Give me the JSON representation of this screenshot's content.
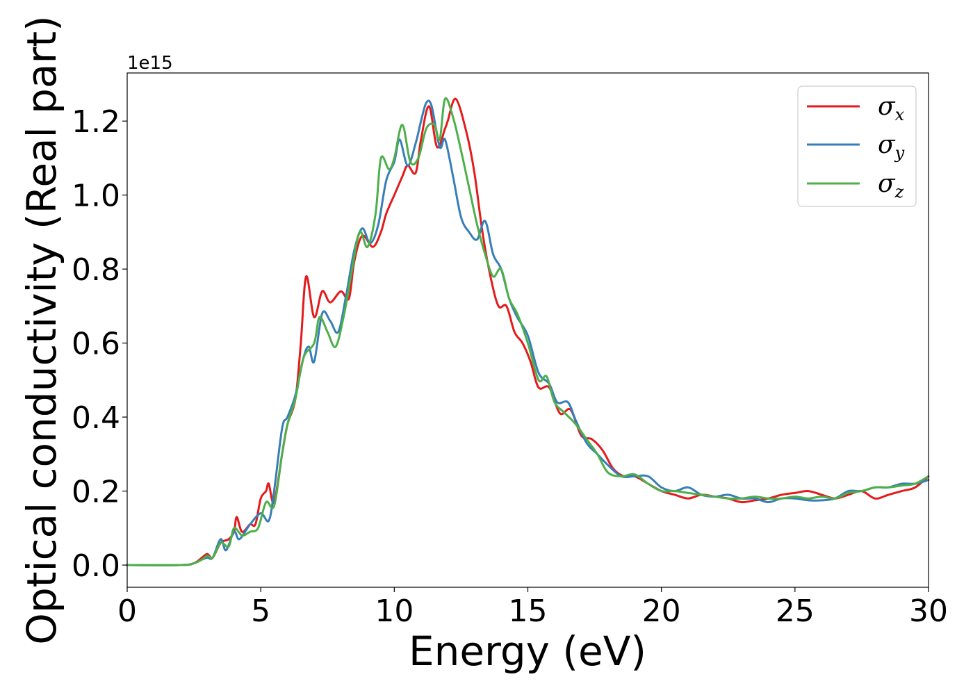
{
  "chart_data": {
    "type": "line",
    "title": "",
    "xlabel": "Energy (eV)",
    "ylabel": "Optical conductivity (Real part)",
    "y_offset_label": "1e15",
    "xlim": [
      0,
      30
    ],
    "ylim": [
      -0.06,
      1.33
    ],
    "x_ticks": [
      0,
      5,
      10,
      15,
      20,
      25,
      30
    ],
    "y_ticks": [
      0.0,
      0.2,
      0.4,
      0.6,
      0.8,
      1.0,
      1.2
    ],
    "x_tick_labels": [
      "0",
      "5",
      "10",
      "15",
      "20",
      "25",
      "30"
    ],
    "y_tick_labels": [
      "0.0",
      "0.2",
      "0.4",
      "0.6",
      "0.8",
      "1.0",
      "1.2"
    ],
    "grid": false,
    "legend_position": "top-right",
    "series": [
      {
        "name": "σ_x",
        "legend_symbol": "σ",
        "legend_sub": "x",
        "color": "#e41a1c",
        "points": [
          [
            0,
            0
          ],
          [
            2,
            0.0
          ],
          [
            2.5,
            0.005
          ],
          [
            2.8,
            0.02
          ],
          [
            3.0,
            0.03
          ],
          [
            3.2,
            0.02
          ],
          [
            3.5,
            0.06
          ],
          [
            3.8,
            0.07
          ],
          [
            4.0,
            0.09
          ],
          [
            4.1,
            0.13
          ],
          [
            4.3,
            0.09
          ],
          [
            4.6,
            0.11
          ],
          [
            4.8,
            0.11
          ],
          [
            5.0,
            0.18
          ],
          [
            5.2,
            0.2
          ],
          [
            5.3,
            0.22
          ],
          [
            5.5,
            0.17
          ],
          [
            5.8,
            0.3
          ],
          [
            6.0,
            0.38
          ],
          [
            6.3,
            0.45
          ],
          [
            6.5,
            0.6
          ],
          [
            6.7,
            0.78
          ],
          [
            7.0,
            0.67
          ],
          [
            7.3,
            0.74
          ],
          [
            7.6,
            0.71
          ],
          [
            8.0,
            0.74
          ],
          [
            8.3,
            0.72
          ],
          [
            8.5,
            0.82
          ],
          [
            8.8,
            0.89
          ],
          [
            9.2,
            0.86
          ],
          [
            9.5,
            0.9
          ],
          [
            9.7,
            0.95
          ],
          [
            10.0,
            1.0
          ],
          [
            10.3,
            1.05
          ],
          [
            10.5,
            1.08
          ],
          [
            10.8,
            1.06
          ],
          [
            11.0,
            1.15
          ],
          [
            11.3,
            1.24
          ],
          [
            11.6,
            1.13
          ],
          [
            11.9,
            1.18
          ],
          [
            12.0,
            1.2
          ],
          [
            12.3,
            1.26
          ],
          [
            12.7,
            1.17
          ],
          [
            13.0,
            1.06
          ],
          [
            13.3,
            0.9
          ],
          [
            13.6,
            0.78
          ],
          [
            13.9,
            0.7
          ],
          [
            14.2,
            0.7
          ],
          [
            14.5,
            0.63
          ],
          [
            14.8,
            0.6
          ],
          [
            15.1,
            0.55
          ],
          [
            15.4,
            0.48
          ],
          [
            15.8,
            0.48
          ],
          [
            16.2,
            0.41
          ],
          [
            16.6,
            0.42
          ],
          [
            17.0,
            0.35
          ],
          [
            17.4,
            0.34
          ],
          [
            17.8,
            0.31
          ],
          [
            18.2,
            0.26
          ],
          [
            18.6,
            0.24
          ],
          [
            19.0,
            0.24
          ],
          [
            19.5,
            0.22
          ],
          [
            20.0,
            0.2
          ],
          [
            20.5,
            0.19
          ],
          [
            21.0,
            0.18
          ],
          [
            21.5,
            0.19
          ],
          [
            22.0,
            0.185
          ],
          [
            22.5,
            0.18
          ],
          [
            23.0,
            0.17
          ],
          [
            23.5,
            0.175
          ],
          [
            24.0,
            0.18
          ],
          [
            24.5,
            0.19
          ],
          [
            25.0,
            0.195
          ],
          [
            25.5,
            0.2
          ],
          [
            26.0,
            0.19
          ],
          [
            26.5,
            0.18
          ],
          [
            27.0,
            0.19
          ],
          [
            27.5,
            0.2
          ],
          [
            28.0,
            0.18
          ],
          [
            28.5,
            0.19
          ],
          [
            29.0,
            0.2
          ],
          [
            29.5,
            0.21
          ],
          [
            30.0,
            0.24
          ]
        ]
      },
      {
        "name": "σ_y",
        "legend_symbol": "σ",
        "legend_sub": "y",
        "color": "#377eb8",
        "points": [
          [
            0,
            0
          ],
          [
            2,
            0.0
          ],
          [
            2.5,
            0.005
          ],
          [
            2.8,
            0.015
          ],
          [
            3.0,
            0.02
          ],
          [
            3.2,
            0.02
          ],
          [
            3.5,
            0.07
          ],
          [
            3.7,
            0.04
          ],
          [
            4.0,
            0.09
          ],
          [
            4.2,
            0.07
          ],
          [
            4.6,
            0.11
          ],
          [
            5.0,
            0.14
          ],
          [
            5.3,
            0.12
          ],
          [
            5.5,
            0.2
          ],
          [
            5.8,
            0.37
          ],
          [
            6.0,
            0.4
          ],
          [
            6.3,
            0.46
          ],
          [
            6.6,
            0.56
          ],
          [
            6.8,
            0.59
          ],
          [
            7.0,
            0.55
          ],
          [
            7.3,
            0.68
          ],
          [
            7.6,
            0.66
          ],
          [
            7.9,
            0.63
          ],
          [
            8.2,
            0.73
          ],
          [
            8.5,
            0.85
          ],
          [
            8.8,
            0.91
          ],
          [
            9.1,
            0.87
          ],
          [
            9.4,
            0.92
          ],
          [
            9.7,
            1.04
          ],
          [
            10.0,
            1.09
          ],
          [
            10.2,
            1.15
          ],
          [
            10.5,
            1.08
          ],
          [
            10.8,
            1.14
          ],
          [
            11.0,
            1.2
          ],
          [
            11.2,
            1.25
          ],
          [
            11.4,
            1.24
          ],
          [
            11.7,
            1.13
          ],
          [
            11.9,
            1.15
          ],
          [
            12.2,
            1.05
          ],
          [
            12.5,
            0.94
          ],
          [
            12.8,
            0.9
          ],
          [
            13.1,
            0.88
          ],
          [
            13.4,
            0.93
          ],
          [
            13.7,
            0.84
          ],
          [
            14.0,
            0.8
          ],
          [
            14.3,
            0.72
          ],
          [
            14.6,
            0.67
          ],
          [
            15.0,
            0.62
          ],
          [
            15.4,
            0.52
          ],
          [
            15.8,
            0.49
          ],
          [
            16.1,
            0.44
          ],
          [
            16.5,
            0.44
          ],
          [
            16.8,
            0.39
          ],
          [
            17.2,
            0.33
          ],
          [
            17.6,
            0.3
          ],
          [
            18.0,
            0.27
          ],
          [
            18.5,
            0.24
          ],
          [
            19.0,
            0.24
          ],
          [
            19.5,
            0.24
          ],
          [
            20.0,
            0.21
          ],
          [
            20.5,
            0.2
          ],
          [
            21.0,
            0.21
          ],
          [
            21.5,
            0.19
          ],
          [
            22.0,
            0.185
          ],
          [
            22.5,
            0.19
          ],
          [
            23.0,
            0.18
          ],
          [
            23.5,
            0.18
          ],
          [
            24.0,
            0.17
          ],
          [
            24.5,
            0.18
          ],
          [
            25.0,
            0.18
          ],
          [
            25.5,
            0.175
          ],
          [
            26.0,
            0.175
          ],
          [
            26.5,
            0.18
          ],
          [
            27.0,
            0.2
          ],
          [
            27.5,
            0.2
          ],
          [
            28.0,
            0.21
          ],
          [
            28.5,
            0.21
          ],
          [
            29.0,
            0.22
          ],
          [
            29.5,
            0.22
          ],
          [
            30.0,
            0.23
          ]
        ]
      },
      {
        "name": "σ_z",
        "legend_symbol": "σ",
        "legend_sub": "z",
        "color": "#4daf4a",
        "points": [
          [
            0,
            0
          ],
          [
            2,
            0.0
          ],
          [
            2.5,
            0.005
          ],
          [
            2.8,
            0.015
          ],
          [
            3.0,
            0.025
          ],
          [
            3.2,
            0.02
          ],
          [
            3.5,
            0.06
          ],
          [
            3.8,
            0.05
          ],
          [
            4.0,
            0.1
          ],
          [
            4.3,
            0.08
          ],
          [
            4.6,
            0.09
          ],
          [
            4.9,
            0.1
          ],
          [
            5.2,
            0.17
          ],
          [
            5.5,
            0.16
          ],
          [
            5.8,
            0.3
          ],
          [
            6.0,
            0.38
          ],
          [
            6.3,
            0.45
          ],
          [
            6.6,
            0.56
          ],
          [
            7.0,
            0.6
          ],
          [
            7.2,
            0.67
          ],
          [
            7.5,
            0.63
          ],
          [
            7.8,
            0.59
          ],
          [
            8.1,
            0.67
          ],
          [
            8.4,
            0.79
          ],
          [
            8.7,
            0.9
          ],
          [
            9.0,
            0.86
          ],
          [
            9.3,
            0.95
          ],
          [
            9.5,
            1.1
          ],
          [
            9.8,
            1.07
          ],
          [
            10.0,
            1.1
          ],
          [
            10.3,
            1.19
          ],
          [
            10.6,
            1.09
          ],
          [
            10.9,
            1.1
          ],
          [
            11.2,
            1.18
          ],
          [
            11.5,
            1.19
          ],
          [
            11.7,
            1.15
          ],
          [
            11.9,
            1.26
          ],
          [
            12.2,
            1.21
          ],
          [
            12.5,
            1.12
          ],
          [
            12.8,
            1.02
          ],
          [
            13.1,
            0.92
          ],
          [
            13.4,
            0.84
          ],
          [
            13.7,
            0.78
          ],
          [
            14.0,
            0.8
          ],
          [
            14.3,
            0.72
          ],
          [
            14.6,
            0.68
          ],
          [
            15.0,
            0.6
          ],
          [
            15.4,
            0.5
          ],
          [
            15.7,
            0.51
          ],
          [
            16.0,
            0.44
          ],
          [
            16.4,
            0.41
          ],
          [
            16.8,
            0.38
          ],
          [
            17.2,
            0.34
          ],
          [
            17.6,
            0.3
          ],
          [
            18.0,
            0.25
          ],
          [
            18.5,
            0.24
          ],
          [
            19.0,
            0.245
          ],
          [
            19.5,
            0.22
          ],
          [
            20.0,
            0.2
          ],
          [
            20.5,
            0.2
          ],
          [
            21.0,
            0.195
          ],
          [
            21.5,
            0.19
          ],
          [
            22.0,
            0.185
          ],
          [
            22.5,
            0.18
          ],
          [
            23.0,
            0.18
          ],
          [
            23.5,
            0.185
          ],
          [
            24.0,
            0.18
          ],
          [
            24.5,
            0.18
          ],
          [
            25.0,
            0.185
          ],
          [
            25.5,
            0.18
          ],
          [
            26.0,
            0.185
          ],
          [
            26.5,
            0.18
          ],
          [
            27.0,
            0.195
          ],
          [
            27.5,
            0.2
          ],
          [
            28.0,
            0.21
          ],
          [
            28.5,
            0.21
          ],
          [
            29.0,
            0.215
          ],
          [
            29.5,
            0.22
          ],
          [
            30.0,
            0.24
          ]
        ]
      }
    ]
  }
}
